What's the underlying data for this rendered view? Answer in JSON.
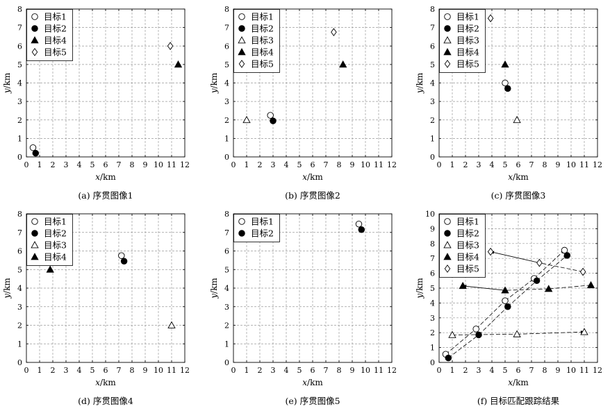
{
  "figure": {
    "markers": {
      "目标1": "circle-open",
      "目标2": "circle-filled",
      "目标3": "triangle-open",
      "目标4": "triangle-filled",
      "目标5": "diamond-open"
    },
    "grid": true,
    "grid_style": "dashed",
    "ink_color": "#000000",
    "grid_color": "#9a9a9a"
  },
  "chart_data": [
    {
      "type": "scatter",
      "caption": "(a) 序贯图像1",
      "xlabel_italic": "x",
      "xlabel_unit": "/km",
      "ylabel_italic": "y",
      "ylabel_unit": "/km",
      "xlim": [
        0,
        12
      ],
      "ylim": [
        0,
        8
      ],
      "xticks": [
        "0",
        "1",
        "2",
        "3",
        "4",
        "5",
        "6",
        "7",
        "8",
        "9",
        "10",
        "11",
        "12"
      ],
      "yticks": [
        "0",
        "1",
        "2",
        "3",
        "4",
        "5",
        "6",
        "7",
        "8"
      ],
      "legend": [
        "目标1",
        "目标2",
        "目标4",
        "目标5"
      ],
      "series": [
        {
          "name": "目标1",
          "points": [
            [
              0.5,
              0.5
            ]
          ]
        },
        {
          "name": "目标2",
          "points": [
            [
              0.7,
              0.2
            ]
          ]
        },
        {
          "name": "目标4",
          "points": [
            [
              11.5,
              5.0
            ]
          ]
        },
        {
          "name": "目标5",
          "points": [
            [
              10.9,
              6.0
            ]
          ]
        }
      ]
    },
    {
      "type": "scatter",
      "caption": "(b) 序贯图像2",
      "xlabel_italic": "x",
      "xlabel_unit": "/km",
      "ylabel_italic": "y",
      "ylabel_unit": "/km",
      "xlim": [
        0,
        12
      ],
      "ylim": [
        0,
        8
      ],
      "xticks": [
        "0",
        "1",
        "2",
        "3",
        "4",
        "5",
        "6",
        "7",
        "8",
        "9",
        "10",
        "11",
        "12"
      ],
      "yticks": [
        "0",
        "1",
        "2",
        "3",
        "4",
        "5",
        "6",
        "7",
        "8"
      ],
      "legend": [
        "目标1",
        "目标2",
        "目标3",
        "目标4",
        "目标5"
      ],
      "series": [
        {
          "name": "目标1",
          "points": [
            [
              2.8,
              2.25
            ]
          ]
        },
        {
          "name": "目标2",
          "points": [
            [
              3.0,
              1.95
            ]
          ]
        },
        {
          "name": "目标3",
          "points": [
            [
              1.0,
              2.0
            ]
          ]
        },
        {
          "name": "目标4",
          "points": [
            [
              8.3,
              5.0
            ]
          ]
        },
        {
          "name": "目标5",
          "points": [
            [
              7.6,
              6.75
            ]
          ]
        }
      ]
    },
    {
      "type": "scatter",
      "caption": "(c) 序贯图像3",
      "xlabel_italic": "x",
      "xlabel_unit": "/km",
      "ylabel_italic": "y",
      "ylabel_unit": "/km",
      "xlim": [
        0,
        12
      ],
      "ylim": [
        0,
        8
      ],
      "xticks": [
        "0",
        "1",
        "2",
        "3",
        "4",
        "5",
        "6",
        "7",
        "8",
        "9",
        "10",
        "11",
        "12"
      ],
      "yticks": [
        "0",
        "1",
        "2",
        "3",
        "4",
        "5",
        "6",
        "7",
        "8"
      ],
      "legend": [
        "目标1",
        "目标2",
        "目标3",
        "目标4",
        "目标5"
      ],
      "series": [
        {
          "name": "目标1",
          "points": [
            [
              5.0,
              4.0
            ]
          ]
        },
        {
          "name": "目标2",
          "points": [
            [
              5.2,
              3.7
            ]
          ]
        },
        {
          "name": "目标3",
          "points": [
            [
              5.9,
              2.0
            ]
          ]
        },
        {
          "name": "目标4",
          "points": [
            [
              5.0,
              5.0
            ]
          ]
        },
        {
          "name": "目标5",
          "points": [
            [
              3.9,
              7.5
            ]
          ]
        }
      ]
    },
    {
      "type": "scatter",
      "caption": "(d) 序贯图像4",
      "xlabel_italic": "x",
      "xlabel_unit": "/km",
      "ylabel_italic": "y",
      "ylabel_unit": "/km",
      "xlim": [
        0,
        12
      ],
      "ylim": [
        0,
        8
      ],
      "xticks": [
        "0",
        "1",
        "2",
        "3",
        "4",
        "5",
        "6",
        "7",
        "8",
        "9",
        "10",
        "11",
        "12"
      ],
      "yticks": [
        "0",
        "1",
        "2",
        "3",
        "4",
        "5",
        "6",
        "7",
        "8"
      ],
      "legend": [
        "目标1",
        "目标2",
        "目标3",
        "目标4"
      ],
      "series": [
        {
          "name": "目标1",
          "points": [
            [
              7.2,
              5.75
            ]
          ]
        },
        {
          "name": "目标2",
          "points": [
            [
              7.4,
              5.45
            ]
          ]
        },
        {
          "name": "目标3",
          "points": [
            [
              11.0,
              2.0
            ]
          ]
        },
        {
          "name": "目标4",
          "points": [
            [
              1.8,
              5.0
            ]
          ]
        }
      ]
    },
    {
      "type": "scatter",
      "caption": "(e) 序贯图像5",
      "xlabel_italic": "x",
      "xlabel_unit": "/km",
      "ylabel_italic": "y",
      "ylabel_unit": "/km",
      "xlim": [
        0,
        12
      ],
      "ylim": [
        0,
        8
      ],
      "xticks": [
        "0",
        "1",
        "2",
        "3",
        "4",
        "5",
        "6",
        "7",
        "8",
        "9",
        "10",
        "11",
        "12"
      ],
      "yticks": [
        "0",
        "1",
        "2",
        "3",
        "4",
        "5",
        "6",
        "7",
        "8"
      ],
      "legend": [
        "目标1",
        "目标2"
      ],
      "series": [
        {
          "name": "目标1",
          "points": [
            [
              9.5,
              7.45
            ]
          ]
        },
        {
          "name": "目标2",
          "points": [
            [
              9.7,
              7.15
            ]
          ]
        }
      ]
    },
    {
      "type": "line",
      "caption": "(f) 目标匹配跟踪结果",
      "xlabel_italic": "x",
      "xlabel_unit": "/km",
      "ylabel_italic": "y",
      "ylabel_unit": "/km",
      "xlim": [
        0,
        12
      ],
      "ylim": [
        0,
        10
      ],
      "xticks": [
        "0",
        "1",
        "2",
        "3",
        "4",
        "5",
        "6",
        "7",
        "8",
        "9",
        "10",
        "11",
        "12"
      ],
      "yticks": [
        "0",
        "1",
        "2",
        "3",
        "4",
        "5",
        "6",
        "7",
        "8",
        "9",
        "10"
      ],
      "legend": [
        "目标1",
        "目标2",
        "目标3",
        "目标4",
        "目标5"
      ],
      "line_style": "dashed",
      "series": [
        {
          "name": "目标1",
          "points": [
            [
              0.5,
              0.55
            ],
            [
              2.8,
              2.25
            ],
            [
              5.0,
              4.15
            ],
            [
              7.2,
              5.65
            ],
            [
              9.5,
              7.55
            ]
          ]
        },
        {
          "name": "目标2",
          "points": [
            [
              0.7,
              0.3
            ],
            [
              3.0,
              1.85
            ],
            [
              5.2,
              3.75
            ],
            [
              7.4,
              5.5
            ],
            [
              9.7,
              7.2
            ]
          ]
        },
        {
          "name": "目标3",
          "points": [
            [
              1.0,
              1.85
            ],
            [
              5.9,
              1.9
            ],
            [
              11.0,
              2.05
            ]
          ]
        },
        {
          "name": "目标4",
          "points": [
            [
              11.5,
              5.2
            ],
            [
              8.3,
              4.95
            ],
            [
              5.0,
              4.85
            ],
            [
              1.8,
              5.15
            ]
          ]
        },
        {
          "name": "目标5",
          "points": [
            [
              10.9,
              6.1
            ],
            [
              7.6,
              6.7
            ],
            [
              3.9,
              7.45
            ]
          ]
        }
      ]
    }
  ]
}
